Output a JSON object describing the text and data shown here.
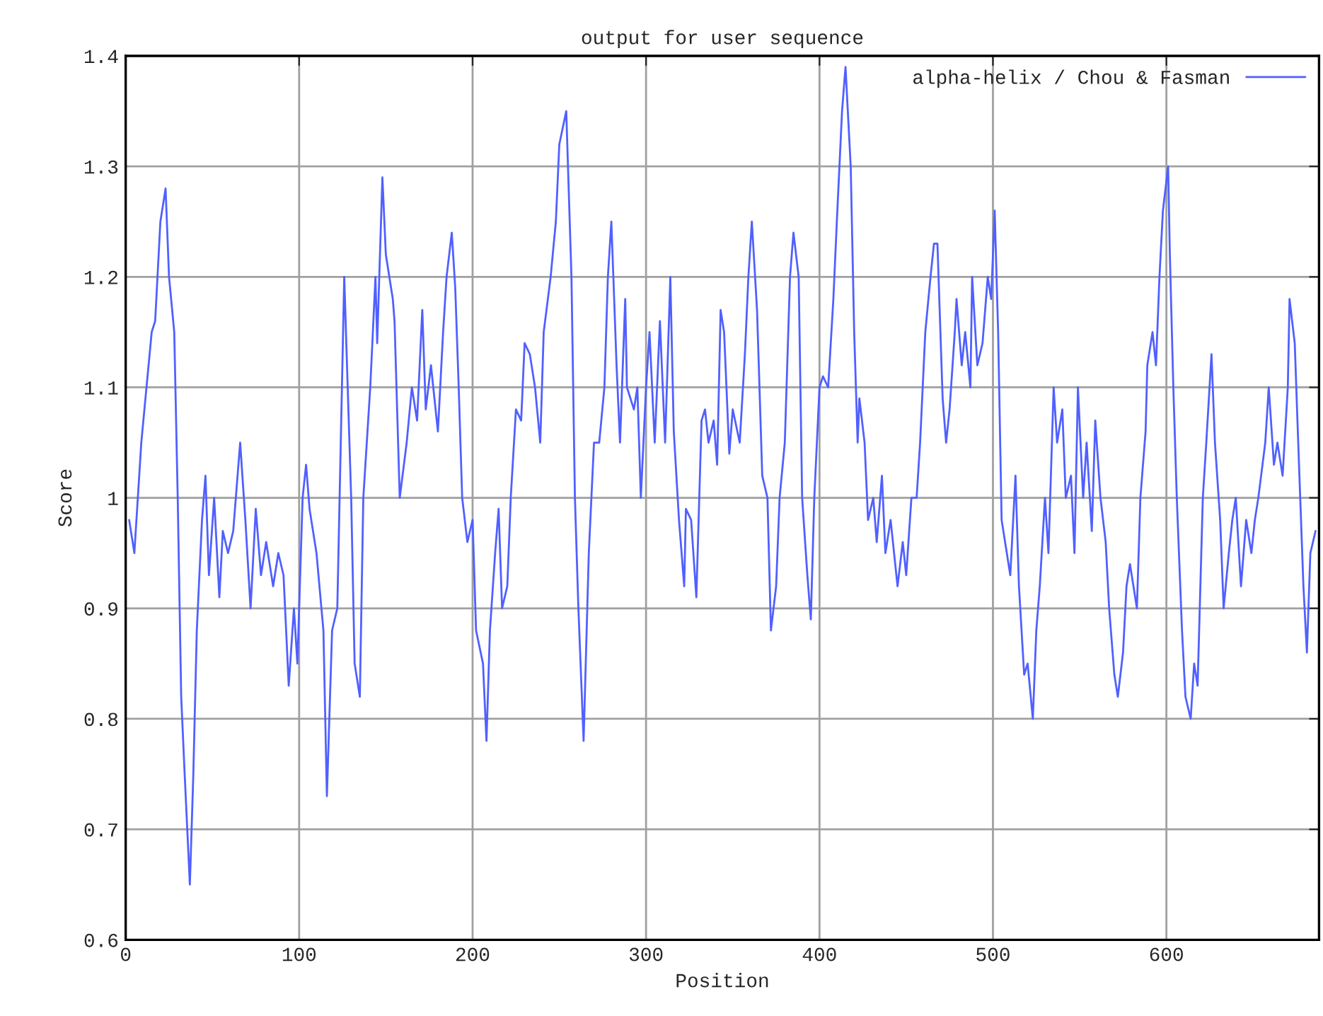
{
  "chart_data": {
    "type": "line",
    "title": "output for user sequence",
    "xlabel": "Position",
    "ylabel": "Score",
    "xlim": [
      0,
      688
    ],
    "xticks": [
      0,
      100,
      200,
      300,
      400,
      500,
      600
    ],
    "ylim": [
      0.6,
      1.4
    ],
    "yticks": [
      0.6,
      0.7,
      0.8,
      0.9,
      1,
      1.1,
      1.2,
      1.3,
      1.4
    ],
    "grid": true,
    "legend": "top right",
    "series": [
      {
        "name": "alpha-helix / Chou & Fasman",
        "color": "#5060ff",
        "x": [
          2,
          5,
          7,
          9,
          12,
          15,
          17,
          20,
          23,
          25,
          28,
          30,
          32,
          34,
          37,
          39,
          41,
          44,
          46,
          48,
          51,
          54,
          56,
          59,
          62,
          66,
          69,
          72,
          75,
          78,
          81,
          85,
          88,
          91,
          94,
          97,
          99,
          102,
          104,
          106,
          110,
          114,
          116,
          119,
          122,
          124,
          126,
          128,
          130,
          132,
          135,
          137,
          141,
          144,
          145,
          148,
          150,
          154,
          155,
          158,
          162,
          165,
          168,
          171,
          173,
          176,
          180,
          183,
          185,
          188,
          190,
          192,
          194,
          197,
          200,
          202,
          206,
          208,
          210,
          213,
          215,
          217,
          220,
          222,
          225,
          228,
          230,
          233,
          236,
          239,
          241,
          245,
          248,
          250,
          254,
          257,
          259,
          261,
          264,
          267,
          270,
          273,
          276,
          278,
          280,
          283,
          285,
          288,
          289,
          293,
          295,
          297,
          300,
          302,
          305,
          308,
          311,
          314,
          316,
          319,
          322,
          323,
          326,
          329,
          332,
          334,
          336,
          339,
          341,
          343,
          345,
          348,
          350,
          354,
          357,
          359,
          361,
          364,
          367,
          370,
          372,
          375,
          377,
          380,
          383,
          385,
          388,
          390,
          393,
          395,
          397,
          400,
          402,
          405,
          408,
          410,
          413,
          415,
          418,
          420,
          422,
          423,
          426,
          428,
          431,
          433,
          436,
          438,
          441,
          445,
          448,
          450,
          453,
          456,
          458,
          461,
          464,
          466,
          468,
          471,
          473,
          475,
          478,
          479,
          482,
          484,
          487,
          488,
          491,
          494,
          497,
          499,
          501,
          503,
          505,
          508,
          510,
          513,
          515,
          518,
          520,
          523,
          525,
          527,
          530,
          532,
          535,
          537,
          540,
          542,
          545,
          547,
          549,
          552,
          554,
          557,
          559,
          562,
          565,
          567,
          570,
          572,
          575,
          577,
          579,
          583,
          585,
          588,
          589,
          592,
          594,
          596,
          598,
          601,
          602,
          604,
          606,
          609,
          611,
          614,
          616,
          618,
          621,
          623,
          626,
          628,
          631,
          633,
          636,
          638,
          640,
          643,
          646,
          649,
          651,
          653,
          657,
          659,
          662,
          664,
          667,
          670,
          671,
          674,
          676,
          679,
          681,
          683,
          686
        ],
        "values": [
          0.98,
          0.95,
          1.0,
          1.05,
          1.1,
          1.15,
          1.16,
          1.25,
          1.28,
          1.2,
          1.15,
          1.0,
          0.82,
          0.75,
          0.65,
          0.75,
          0.88,
          0.98,
          1.02,
          0.93,
          1.0,
          0.91,
          0.97,
          0.95,
          0.97,
          1.05,
          0.98,
          0.9,
          0.99,
          0.93,
          0.96,
          0.92,
          0.95,
          0.93,
          0.83,
          0.9,
          0.85,
          1.0,
          1.03,
          0.99,
          0.95,
          0.88,
          0.73,
          0.88,
          0.9,
          1.05,
          1.2,
          1.1,
          1.0,
          0.85,
          0.82,
          1.0,
          1.1,
          1.2,
          1.14,
          1.29,
          1.22,
          1.18,
          1.16,
          1.0,
          1.05,
          1.1,
          1.07,
          1.17,
          1.08,
          1.12,
          1.06,
          1.15,
          1.2,
          1.24,
          1.19,
          1.1,
          1.0,
          0.96,
          0.98,
          0.88,
          0.85,
          0.78,
          0.88,
          0.95,
          0.99,
          0.9,
          0.92,
          1.0,
          1.08,
          1.07,
          1.14,
          1.13,
          1.1,
          1.05,
          1.15,
          1.2,
          1.25,
          1.32,
          1.35,
          1.2,
          1.0,
          0.9,
          0.78,
          0.95,
          1.05,
          1.05,
          1.1,
          1.2,
          1.25,
          1.12,
          1.05,
          1.18,
          1.1,
          1.08,
          1.1,
          1.0,
          1.1,
          1.15,
          1.05,
          1.16,
          1.05,
          1.2,
          1.06,
          0.98,
          0.92,
          0.99,
          0.98,
          0.91,
          1.07,
          1.08,
          1.05,
          1.07,
          1.03,
          1.17,
          1.15,
          1.04,
          1.08,
          1.05,
          1.13,
          1.2,
          1.25,
          1.17,
          1.02,
          1.0,
          0.88,
          0.92,
          1.0,
          1.05,
          1.2,
          1.24,
          1.2,
          1.0,
          0.93,
          0.89,
          1.0,
          1.1,
          1.11,
          1.1,
          1.18,
          1.25,
          1.35,
          1.39,
          1.3,
          1.15,
          1.05,
          1.09,
          1.05,
          0.98,
          1.0,
          0.96,
          1.02,
          0.95,
          0.98,
          0.92,
          0.96,
          0.93,
          1.0,
          1.0,
          1.05,
          1.15,
          1.2,
          1.23,
          1.23,
          1.09,
          1.05,
          1.08,
          1.15,
          1.18,
          1.12,
          1.15,
          1.1,
          1.2,
          1.12,
          1.14,
          1.2,
          1.18,
          1.26,
          1.15,
          0.98,
          0.95,
          0.93,
          1.02,
          0.92,
          0.84,
          0.85,
          0.8,
          0.88,
          0.92,
          1.0,
          0.95,
          1.1,
          1.05,
          1.08,
          1.0,
          1.02,
          0.95,
          1.1,
          1.0,
          1.05,
          0.97,
          1.07,
          1.0,
          0.96,
          0.9,
          0.84,
          0.82,
          0.86,
          0.92,
          0.94,
          0.9,
          1.0,
          1.06,
          1.12,
          1.15,
          1.12,
          1.2,
          1.26,
          1.3,
          1.22,
          1.1,
          1.0,
          0.88,
          0.82,
          0.8,
          0.85,
          0.83,
          1.0,
          1.05,
          1.13,
          1.05,
          0.98,
          0.9,
          0.95,
          0.98,
          1.0,
          0.92,
          0.98,
          0.95,
          0.98,
          1.0,
          1.05,
          1.1,
          1.03,
          1.05,
          1.02,
          1.1,
          1.18,
          1.14,
          1.05,
          0.92,
          0.86,
          0.95,
          0.97
        ]
      }
    ]
  }
}
